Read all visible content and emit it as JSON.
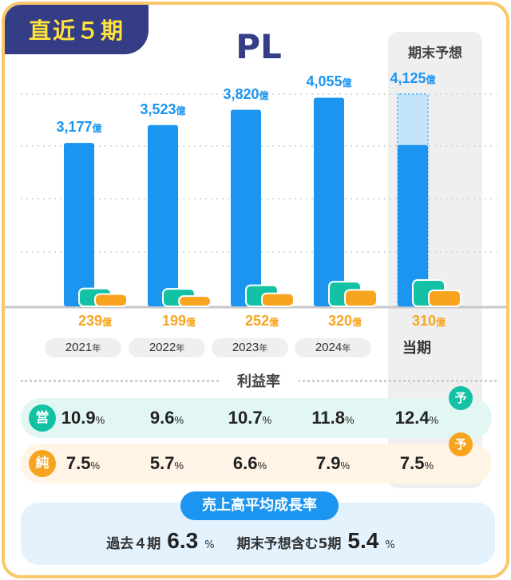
{
  "header": {
    "tab_label": "直近５期",
    "title": "PL",
    "forecast_label": "期末予想"
  },
  "chart_data": {
    "type": "bar",
    "categories": [
      "2021年",
      "2022年",
      "2023年",
      "2024年",
      "当期"
    ],
    "unit": "億",
    "series": [
      {
        "name": "売上高",
        "values": [
          3177,
          3523,
          3820,
          4055,
          4125
        ],
        "labels": [
          "3,177",
          "3,523",
          "3,820",
          "4,055",
          "4,125"
        ],
        "color": "#1b95f0"
      },
      {
        "name": "営業利益率",
        "values": [
          10.9,
          9.6,
          10.7,
          11.8,
          12.4
        ],
        "color": "#13c2a5"
      },
      {
        "name": "純利益",
        "values": [
          239,
          199,
          252,
          320,
          310
        ],
        "color": "#f8a41e"
      }
    ],
    "forecast_index": 4,
    "grid": "dotted horizontal"
  },
  "year_suffix": "年",
  "unit": "億",
  "margins": {
    "title": "利益率",
    "operating": {
      "badge": "営",
      "values": [
        "10.9",
        "9.6",
        "10.7",
        "11.8",
        "12.4"
      ],
      "color": "#13c2a5"
    },
    "net": {
      "badge": "純",
      "values": [
        "7.5",
        "5.7",
        "6.6",
        "7.9",
        "7.5"
      ],
      "color": "#f8a41e"
    },
    "forecast_badge": "予",
    "pct": "%"
  },
  "growth": {
    "title": "売上高平均成長率",
    "past_label": "過去４期",
    "past_value": "6.3",
    "incl_label": "期末予想含む5期",
    "incl_value": "5.4",
    "pct": "%"
  }
}
